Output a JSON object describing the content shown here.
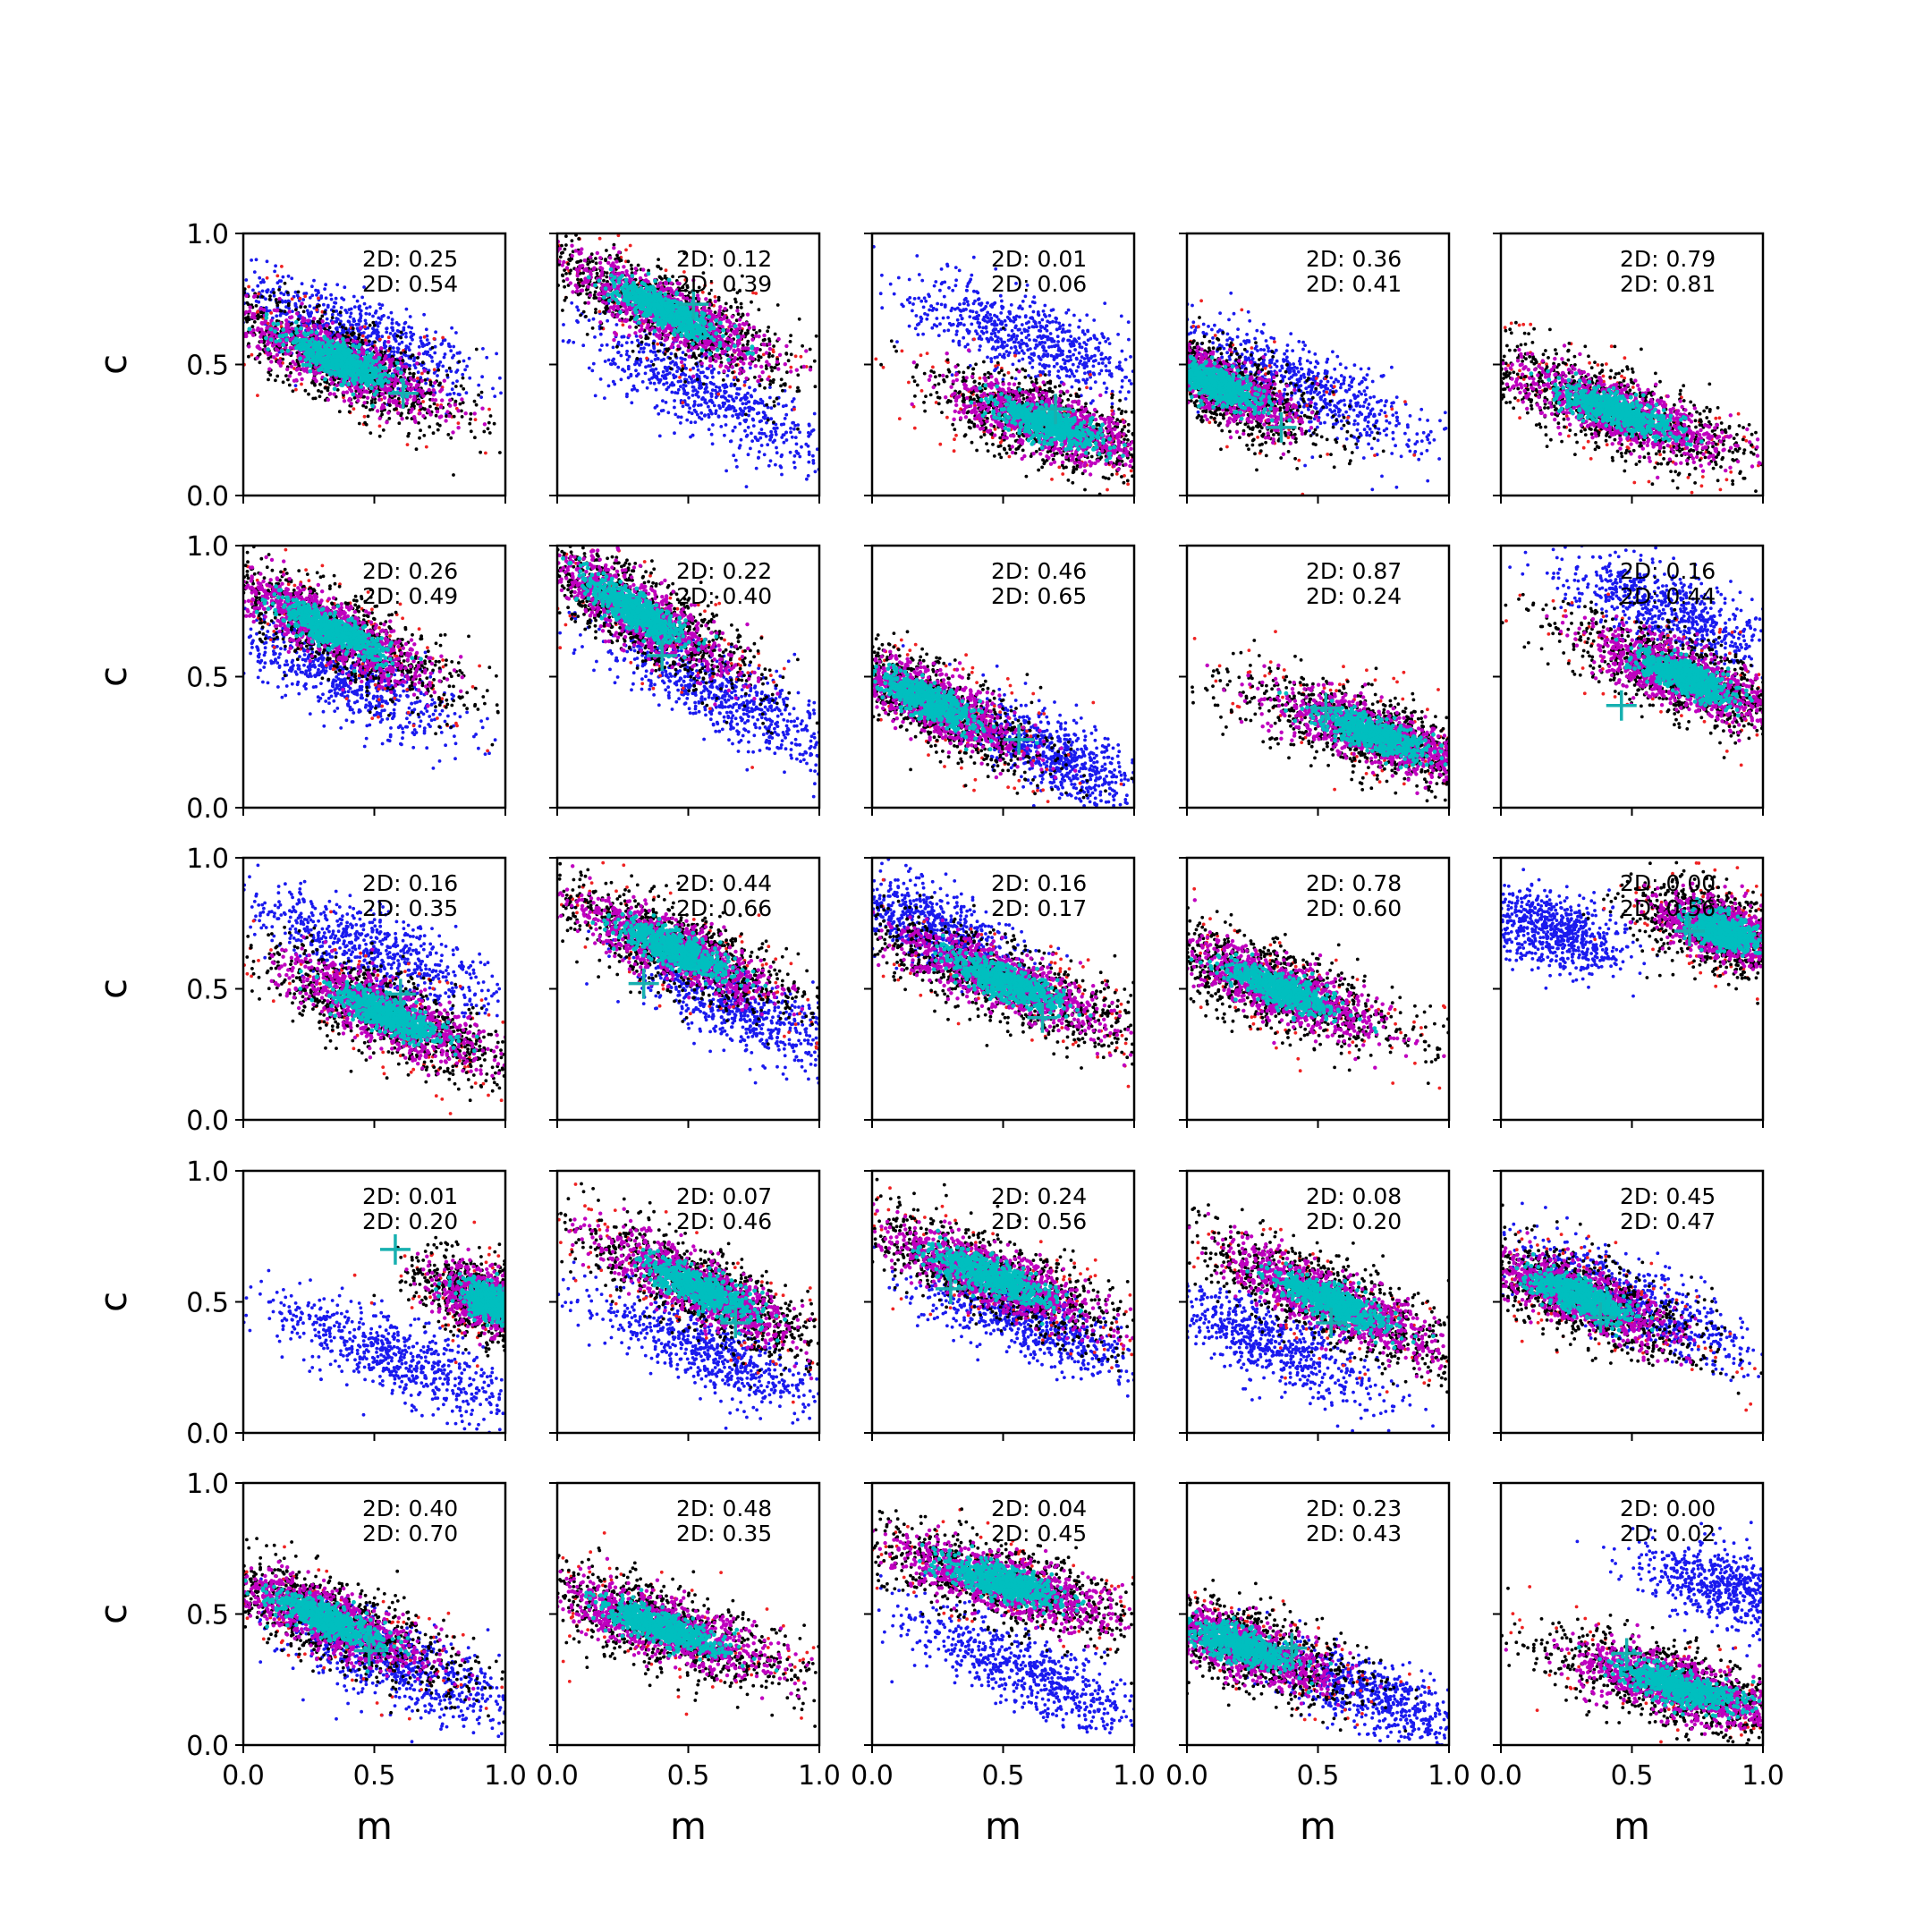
{
  "chart_data": {
    "type": "scatter",
    "layout": {
      "rows": 5,
      "cols": 5,
      "sharex": true,
      "sharey": true
    },
    "xlabel": "m",
    "ylabel": "c",
    "xlim": [
      0,
      1
    ],
    "ylim": [
      0,
      1
    ],
    "xticks": [
      "0.0",
      "0.5",
      "1.0"
    ],
    "yticks": [
      "0.0",
      "0.5",
      "1.0"
    ],
    "grid": false,
    "marker_colors": {
      "outer_red": "#ee2222",
      "black": "#000000",
      "magenta": "#bf00bf",
      "cyan": "#00bfbf",
      "blue": "#1a1aee",
      "cross": "#17b0b0"
    },
    "panels": [
      {
        "annotations": [
          "2D: 0.25",
          "2D: 0.54"
        ],
        "main": {
          "center": [
            0.37,
            0.51
          ],
          "slope": -0.45,
          "spread": 0.55
        },
        "blue": {
          "center": [
            0.42,
            0.62
          ],
          "slope": -0.42,
          "spread": 0.45
        },
        "cross": [
          0.61,
          0.39
        ]
      },
      {
        "annotations": [
          "2D: 0.12",
          "2D: 0.39"
        ],
        "main": {
          "center": [
            0.42,
            0.7
          ],
          "slope": -0.48,
          "spread": 0.55
        },
        "blue": {
          "center": [
            0.58,
            0.38
          ],
          "slope": -0.5,
          "spread": 0.5
        },
        "cross": [
          0.52,
          0.73
        ]
      },
      {
        "annotations": [
          "2D: 0.01",
          "2D: 0.06"
        ],
        "main": {
          "center": [
            0.68,
            0.27
          ],
          "slope": -0.35,
          "spread": 0.5
        },
        "blue": {
          "center": [
            0.6,
            0.6
          ],
          "slope": -0.35,
          "spread": 0.45
        },
        "cross": [
          0.7,
          0.33
        ]
      },
      {
        "annotations": [
          "2D: 0.36",
          "2D: 0.41"
        ],
        "main": {
          "center": [
            0.12,
            0.42
          ],
          "slope": -0.45,
          "spread": 0.45
        },
        "blue": {
          "center": [
            0.45,
            0.42
          ],
          "slope": -0.45,
          "spread": 0.55
        },
        "cross": [
          0.36,
          0.26
        ]
      },
      {
        "annotations": [
          "2D: 0.79",
          "2D: 0.81"
        ],
        "main": {
          "center": [
            0.45,
            0.32
          ],
          "slope": -0.35,
          "spread": 0.6
        },
        "blue": null,
        "cross": null
      },
      {
        "annotations": [
          "2D: 0.26",
          "2D: 0.49"
        ],
        "main": {
          "center": [
            0.33,
            0.68
          ],
          "slope": -0.5,
          "spread": 0.55
        },
        "blue": {
          "center": [
            0.38,
            0.5
          ],
          "slope": -0.45,
          "spread": 0.45
        },
        "cross": null
      },
      {
        "annotations": [
          "2D: 0.22",
          "2D: 0.40"
        ],
        "main": {
          "center": [
            0.3,
            0.75
          ],
          "slope": -0.6,
          "spread": 0.55
        },
        "blue": {
          "center": [
            0.65,
            0.42
          ],
          "slope": -0.5,
          "spread": 0.5
        },
        "cross": [
          0.4,
          0.58
        ]
      },
      {
        "annotations": [
          "2D: 0.46",
          "2D: 0.65"
        ],
        "main": {
          "center": [
            0.22,
            0.4
          ],
          "slope": -0.5,
          "spread": 0.5
        },
        "blue": {
          "center": [
            0.7,
            0.2
          ],
          "slope": -0.5,
          "spread": 0.35
        },
        "cross": [
          0.56,
          0.26
        ]
      },
      {
        "annotations": [
          "2D: 0.87",
          "2D: 0.24"
        ],
        "main": {
          "center": [
            0.72,
            0.28
          ],
          "slope": -0.35,
          "spread": 0.55
        },
        "blue": null,
        "cross": [
          0.53,
          0.38
        ]
      },
      {
        "annotations": [
          "2D: 0.16",
          "2D: 0.44"
        ],
        "main": {
          "center": [
            0.7,
            0.5
          ],
          "slope": -0.42,
          "spread": 0.5
        },
        "blue": {
          "center": [
            0.65,
            0.75
          ],
          "slope": -0.4,
          "spread": 0.45
        },
        "cross": [
          0.46,
          0.39
        ]
      },
      {
        "annotations": [
          "2D: 0.16",
          "2D: 0.35"
        ],
        "main": {
          "center": [
            0.55,
            0.4
          ],
          "slope": -0.45,
          "spread": 0.55
        },
        "blue": {
          "center": [
            0.5,
            0.65
          ],
          "slope": -0.4,
          "spread": 0.5
        },
        "cross": [
          0.6,
          0.48
        ]
      },
      {
        "annotations": [
          "2D: 0.44",
          "2D: 0.66"
        ],
        "main": {
          "center": [
            0.45,
            0.65
          ],
          "slope": -0.45,
          "spread": 0.55
        },
        "blue": {
          "center": [
            0.7,
            0.42
          ],
          "slope": -0.45,
          "spread": 0.45
        },
        "cross": [
          0.33,
          0.52
        ]
      },
      {
        "annotations": [
          "2D: 0.16",
          "2D: 0.17"
        ],
        "main": {
          "center": [
            0.5,
            0.53
          ],
          "slope": -0.4,
          "spread": 0.6
        },
        "blue": {
          "center": [
            0.2,
            0.75
          ],
          "slope": -0.45,
          "spread": 0.35
        },
        "cross": [
          0.65,
          0.39
        ]
      },
      {
        "annotations": [
          "2D: 0.78",
          "2D: 0.60"
        ],
        "main": {
          "center": [
            0.35,
            0.5
          ],
          "slope": -0.4,
          "spread": 0.55
        },
        "blue": null,
        "cross": null
      },
      {
        "annotations": [
          "2D: 0.00",
          "2D: 0.56"
        ],
        "main": {
          "center": [
            0.85,
            0.72
          ],
          "slope": -0.35,
          "spread": 0.35
        },
        "blue": {
          "center": [
            0.2,
            0.72
          ],
          "slope": -0.3,
          "spread": 0.25
        },
        "cross": [
          0.72,
          0.72
        ]
      },
      {
        "annotations": [
          "2D: 0.01",
          "2D: 0.20"
        ],
        "main": {
          "center": [
            0.95,
            0.5
          ],
          "slope": -0.4,
          "spread": 0.3
        },
        "blue": {
          "center": [
            0.6,
            0.28
          ],
          "slope": -0.4,
          "spread": 0.5
        },
        "cross": [
          0.58,
          0.7
        ]
      },
      {
        "annotations": [
          "2D: 0.07",
          "2D: 0.46"
        ],
        "main": {
          "center": [
            0.55,
            0.55
          ],
          "slope": -0.5,
          "spread": 0.55
        },
        "blue": {
          "center": [
            0.6,
            0.3
          ],
          "slope": -0.45,
          "spread": 0.5
        },
        "cross": [
          0.68,
          0.42
        ]
      },
      {
        "annotations": [
          "2D: 0.24",
          "2D: 0.56"
        ],
        "main": {
          "center": [
            0.45,
            0.6
          ],
          "slope": -0.4,
          "spread": 0.6
        },
        "blue": {
          "center": [
            0.6,
            0.42
          ],
          "slope": -0.4,
          "spread": 0.45
        },
        "cross": [
          0.3,
          0.55
        ]
      },
      {
        "annotations": [
          "2D: 0.08",
          "2D: 0.20"
        ],
        "main": {
          "center": [
            0.55,
            0.5
          ],
          "slope": -0.45,
          "spread": 0.6
        },
        "blue": {
          "center": [
            0.3,
            0.35
          ],
          "slope": -0.45,
          "spread": 0.45
        },
        "cross": [
          0.55,
          0.42
        ]
      },
      {
        "annotations": [
          "2D: 0.45",
          "2D: 0.47"
        ],
        "main": {
          "center": [
            0.3,
            0.52
          ],
          "slope": -0.4,
          "spread": 0.5
        },
        "blue": {
          "center": [
            0.5,
            0.5
          ],
          "slope": -0.45,
          "spread": 0.5
        },
        "cross": [
          0.38,
          0.44
        ]
      },
      {
        "annotations": [
          "2D: 0.40",
          "2D: 0.70"
        ],
        "main": {
          "center": [
            0.32,
            0.48
          ],
          "slope": -0.42,
          "spread": 0.55
        },
        "blue": {
          "center": [
            0.6,
            0.3
          ],
          "slope": -0.4,
          "spread": 0.45
        },
        "cross": [
          0.48,
          0.36
        ]
      },
      {
        "annotations": [
          "2D: 0.48",
          "2D: 0.35"
        ],
        "main": {
          "center": [
            0.4,
            0.45
          ],
          "slope": -0.35,
          "spread": 0.6
        },
        "blue": null,
        "cross": null
      },
      {
        "annotations": [
          "2D: 0.04",
          "2D: 0.45"
        ],
        "main": {
          "center": [
            0.5,
            0.62
          ],
          "slope": -0.3,
          "spread": 0.6
        },
        "blue": {
          "center": [
            0.6,
            0.28
          ],
          "slope": -0.45,
          "spread": 0.5
        },
        "cross": null
      },
      {
        "annotations": [
          "2D: 0.23",
          "2D: 0.43"
        ],
        "main": {
          "center": [
            0.2,
            0.38
          ],
          "slope": -0.35,
          "spread": 0.5
        },
        "blue": {
          "center": [
            0.72,
            0.18
          ],
          "slope": -0.4,
          "spread": 0.45
        },
        "cross": [
          0.4,
          0.37
        ]
      },
      {
        "annotations": [
          "2D: 0.00",
          "2D: 0.02"
        ],
        "main": {
          "center": [
            0.68,
            0.22
          ],
          "slope": -0.3,
          "spread": 0.6
        },
        "blue": {
          "center": [
            0.88,
            0.6
          ],
          "slope": -0.3,
          "spread": 0.35
        },
        "cross": [
          0.48,
          0.35
        ]
      }
    ]
  }
}
